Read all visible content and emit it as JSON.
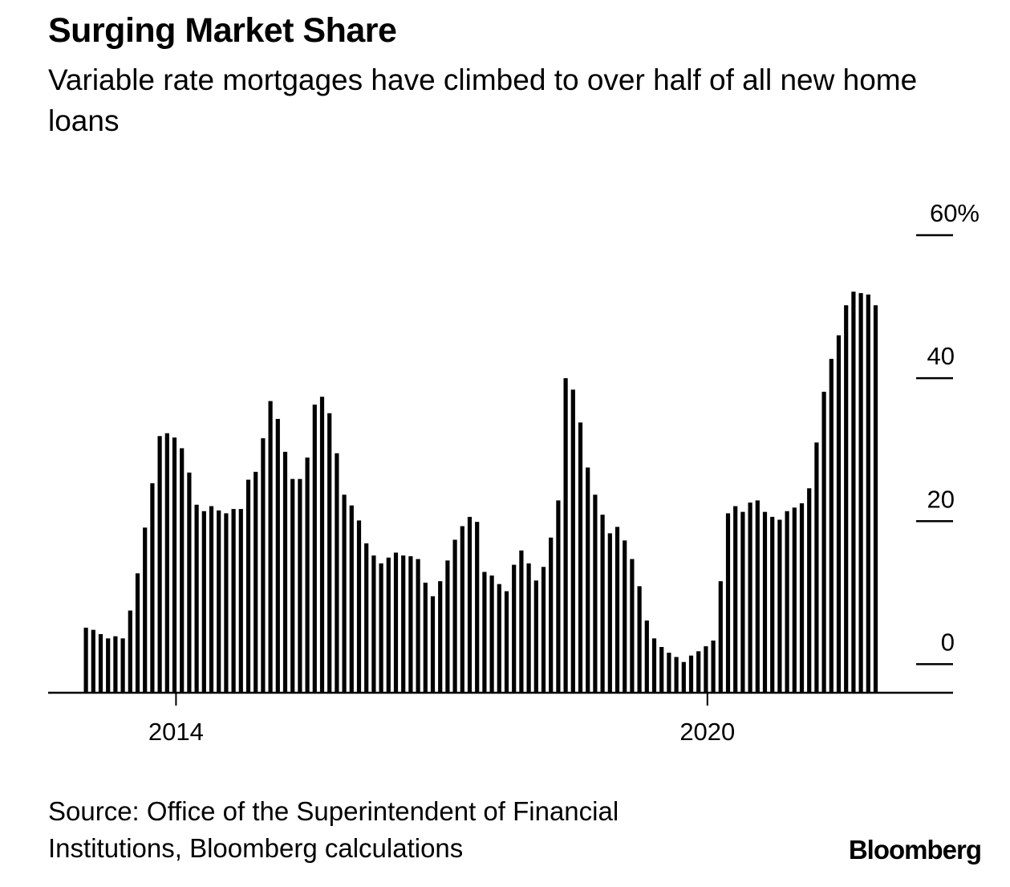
{
  "title": "Surging Market Share",
  "subtitle": "Variable rate mortgages have climbed to over half of all new home loans",
  "source": "Source: Office of the Superintendent of Financial Institutions, Bloomberg calculations",
  "logo": "Bloomberg",
  "chart_data": {
    "type": "bar",
    "title": "Surging Market Share",
    "subtitle": "Variable rate mortgages have climbed to over half of all new home loans",
    "xlabel": "",
    "ylabel": "",
    "y_unit": "%",
    "ylim": [
      -4,
      60
    ],
    "y_ticks": [
      {
        "value": 60,
        "label": "60%"
      },
      {
        "value": 40,
        "label": "40"
      },
      {
        "value": 20,
        "label": "20"
      },
      {
        "value": 0,
        "label": "0"
      }
    ],
    "x_ticks": [
      {
        "index": 12,
        "label": "2014"
      },
      {
        "index": 84,
        "label": "2020"
      }
    ],
    "grid": false,
    "bar_color": "#000000",
    "values": [
      5.1,
      4.8,
      4.2,
      3.6,
      3.9,
      3.6,
      7.5,
      12.7,
      19.1,
      25.3,
      31.9,
      32.3,
      31.7,
      30.2,
      26.8,
      22.3,
      21.4,
      22.1,
      21.5,
      21.1,
      21.7,
      21.7,
      25.8,
      26.9,
      31.6,
      36.8,
      34.3,
      29.7,
      25.9,
      25.9,
      28.9,
      36.3,
      37.4,
      35.1,
      29.5,
      23.7,
      22.2,
      20.1,
      16.9,
      15.2,
      14.1,
      14.9,
      15.6,
      15.2,
      15.1,
      14.7,
      11.4,
      9.5,
      11.6,
      14.5,
      17.4,
      19.3,
      20.6,
      19.9,
      12.9,
      12.4,
      11.2,
      10.2,
      13.9,
      15.9,
      14.1,
      11.7,
      13.6,
      17.7,
      22.9,
      40.0,
      38.4,
      33.8,
      27.5,
      23.7,
      20.9,
      18.3,
      19.2,
      17.3,
      14.7,
      10.9,
      6.1,
      3.6,
      2.4,
      1.6,
      1.0,
      0.3,
      1.2,
      1.8,
      2.5,
      3.3,
      11.6,
      21.1,
      22.1,
      21.3,
      22.6,
      22.9,
      21.3,
      20.6,
      20.2,
      21.4,
      21.9,
      22.5,
      24.6,
      31.0,
      38.1,
      42.7,
      46.0,
      50.2,
      52.1,
      51.9,
      51.7,
      50.2
    ]
  }
}
